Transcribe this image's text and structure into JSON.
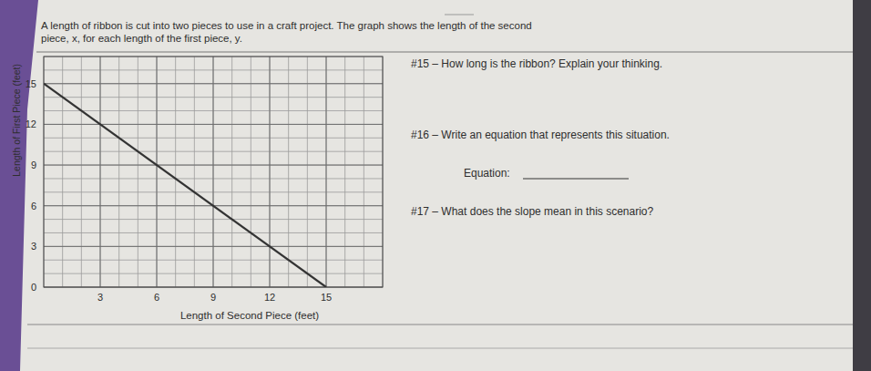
{
  "problem": [
    "A length of ribbon is cut into two pieces to use in a craft project.  The graph shows the length of the second",
    "piece, x, for each length of the first piece, y."
  ],
  "questions": [
    "#15 – How long is the ribbon?  Explain your thinking.",
    "#16 – Write an equation that represents this situation.",
    "#17 – What does the slope mean in this scenario?"
  ],
  "equation_label": "Equation:",
  "chart_data": {
    "type": "line",
    "x_label": "Length of Second Piece (feet)",
    "y_label": "Length of First Piece (feet)",
    "x": [
      0,
      15
    ],
    "series": [
      {
        "values": [
          15,
          0
        ],
        "color": "#333333"
      }
    ],
    "xlim": [
      0,
      18
    ],
    "ylim": [
      0,
      17
    ],
    "xticks": [
      3,
      6,
      9,
      12,
      15
    ],
    "yticks": [
      0,
      3,
      6,
      9,
      12,
      15
    ],
    "grid": true
  }
}
